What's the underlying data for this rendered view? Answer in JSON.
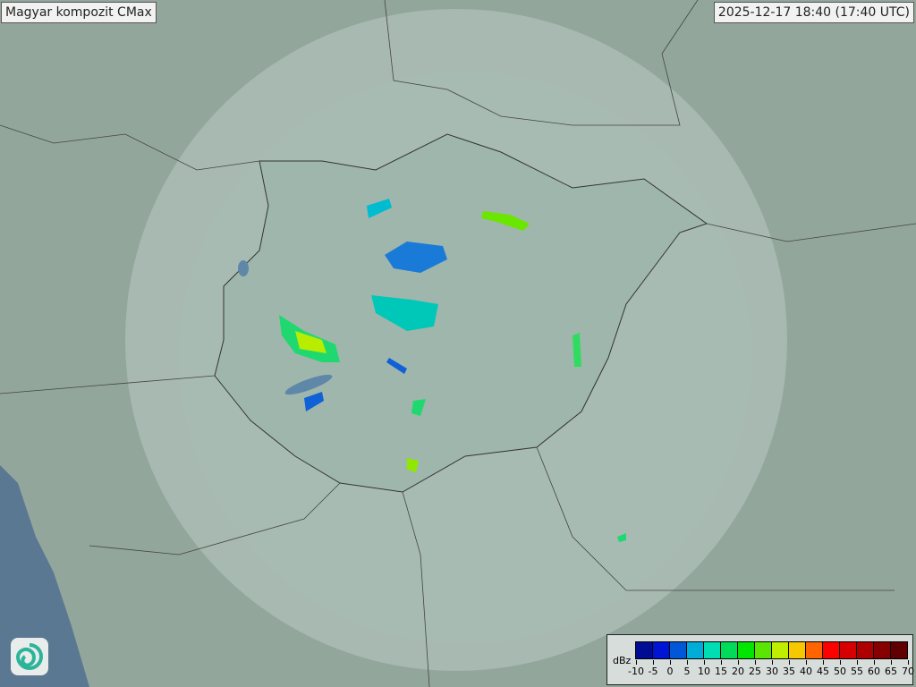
{
  "title": "Magyar kompozit  CMax",
  "timestamp": "2025-12-17 18:40 (17:40 UTC)",
  "logo_icon": "omsz-swirl-logo",
  "legend": {
    "unit": "dBz",
    "tick_labels": [
      "-10",
      "-5",
      "0",
      "5",
      "10",
      "15",
      "20",
      "25",
      "30",
      "35",
      "40",
      "45",
      "50",
      "55",
      "60",
      "65",
      "70"
    ],
    "colors": [
      "#000c94",
      "#0014d6",
      "#0058d8",
      "#00acd8",
      "#00dcb4",
      "#00dc5a",
      "#00e600",
      "#5ae600",
      "#c0ee00",
      "#f6c800",
      "#fe6400",
      "#ff0000",
      "#d60000",
      "#ae0000",
      "#860000",
      "#600000"
    ]
  },
  "map": {
    "background_color": "#8fa49a",
    "radar_coverage_color": "#b4c8c0",
    "sea_color": "#5a7a94"
  }
}
